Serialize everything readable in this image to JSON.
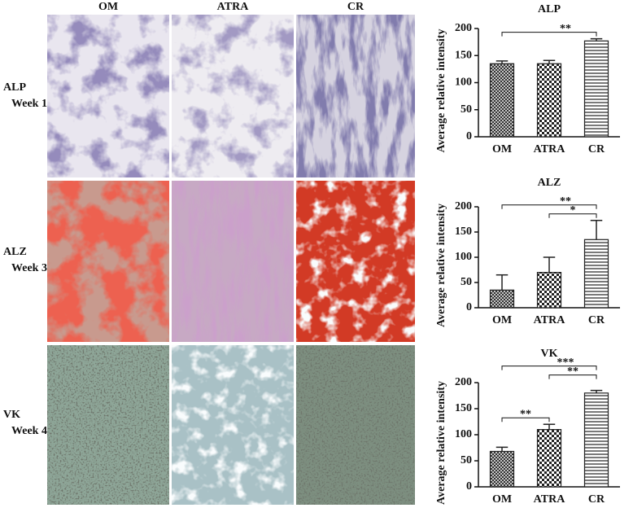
{
  "figure": {
    "columns": [
      "OM",
      "ATRA",
      "CR"
    ],
    "rows": [
      [
        "ALP",
        "Week 1"
      ],
      [
        "ALZ",
        "Week 3"
      ],
      [
        "VK",
        "Week 4"
      ]
    ]
  },
  "chart_data": [
    {
      "type": "bar",
      "title": "ALP",
      "y_label": "Average relative intensity",
      "categories": [
        "OM",
        "ATRA",
        "CR"
      ],
      "values": [
        135,
        135,
        177
      ],
      "errors": [
        5,
        6,
        4
      ],
      "patterns": [
        "crosshatch",
        "checker",
        "hlines"
      ],
      "color": "#222222",
      "ylim": [
        0,
        200
      ],
      "yticks": [
        0,
        50,
        100,
        150,
        200
      ],
      "annotations": [
        {
          "text": "**",
          "from": "OM",
          "to": "CR"
        }
      ]
    },
    {
      "type": "bar",
      "title": "ALZ",
      "y_label": "Average relative intensity",
      "categories": [
        "OM",
        "ATRA",
        "CR"
      ],
      "values": [
        35,
        70,
        135
      ],
      "errors": [
        30,
        30,
        38
      ],
      "patterns": [
        "crosshatch",
        "checker",
        "hlines"
      ],
      "color": "#222222",
      "ylim": [
        0,
        200
      ],
      "yticks": [
        0,
        50,
        100,
        150,
        200
      ],
      "annotations": [
        {
          "text": "*",
          "from": "ATRA",
          "to": "CR"
        },
        {
          "text": "**",
          "from": "OM",
          "to": "CR"
        }
      ]
    },
    {
      "type": "bar",
      "title": "VK",
      "y_label": "Average relative intensity",
      "categories": [
        "OM",
        "ATRA",
        "CR"
      ],
      "values": [
        68,
        110,
        180
      ],
      "errors": [
        8,
        10,
        5
      ],
      "patterns": [
        "crosshatch",
        "checker",
        "hlines"
      ],
      "color": "#222222",
      "ylim": [
        0,
        200
      ],
      "yticks": [
        0,
        50,
        100,
        150,
        200
      ],
      "annotations": [
        {
          "text": "**",
          "from": "OM",
          "to": "ATRA"
        },
        {
          "text": "**",
          "from": "ATRA",
          "to": "CR"
        },
        {
          "text": "***",
          "from": "OM",
          "to": "CR"
        }
      ]
    }
  ]
}
